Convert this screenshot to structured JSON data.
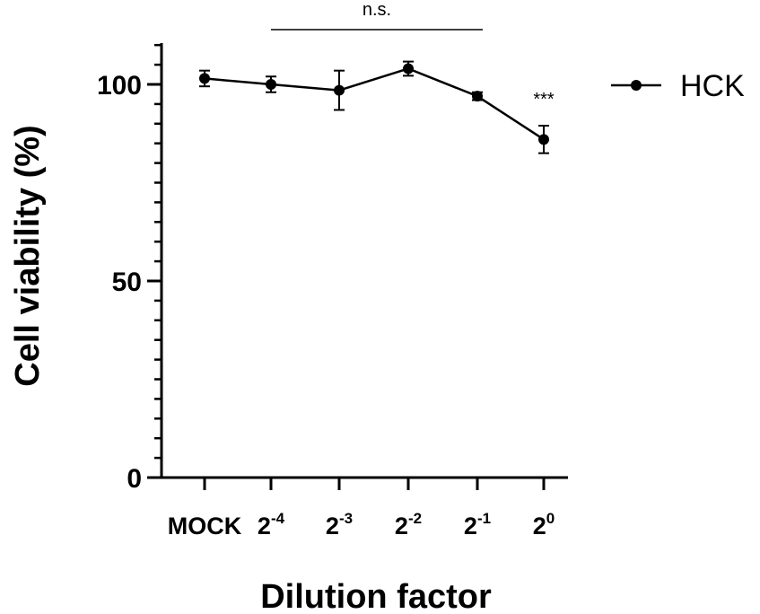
{
  "chart_data": {
    "type": "line",
    "xlabel": "Dilution factor",
    "ylabel": "Cell viability (%)",
    "ylim": [
      0,
      110
    ],
    "y_major_ticks": [
      0,
      50,
      100
    ],
    "y_minor_step": 5,
    "grid": false,
    "legend_position": "top-right",
    "categories": [
      {
        "base": "MOCK",
        "exp": ""
      },
      {
        "base": "2",
        "exp": "-4"
      },
      {
        "base": "2",
        "exp": "-3"
      },
      {
        "base": "2",
        "exp": "-2"
      },
      {
        "base": "2",
        "exp": "-1"
      },
      {
        "base": "2",
        "exp": "0"
      }
    ],
    "series": [
      {
        "name": "HCK",
        "color": "#000000",
        "marker": "circle",
        "values": [
          101.5,
          100.0,
          98.5,
          104.0,
          97.0,
          86.0
        ],
        "errors": [
          2.0,
          2.0,
          5.0,
          1.8,
          1.0,
          3.5
        ]
      }
    ],
    "annotations": [
      {
        "type": "bracket",
        "text": "n.s.",
        "from_category": 1,
        "to_category": 4
      },
      {
        "type": "label",
        "text": "***",
        "category": 5
      }
    ]
  }
}
